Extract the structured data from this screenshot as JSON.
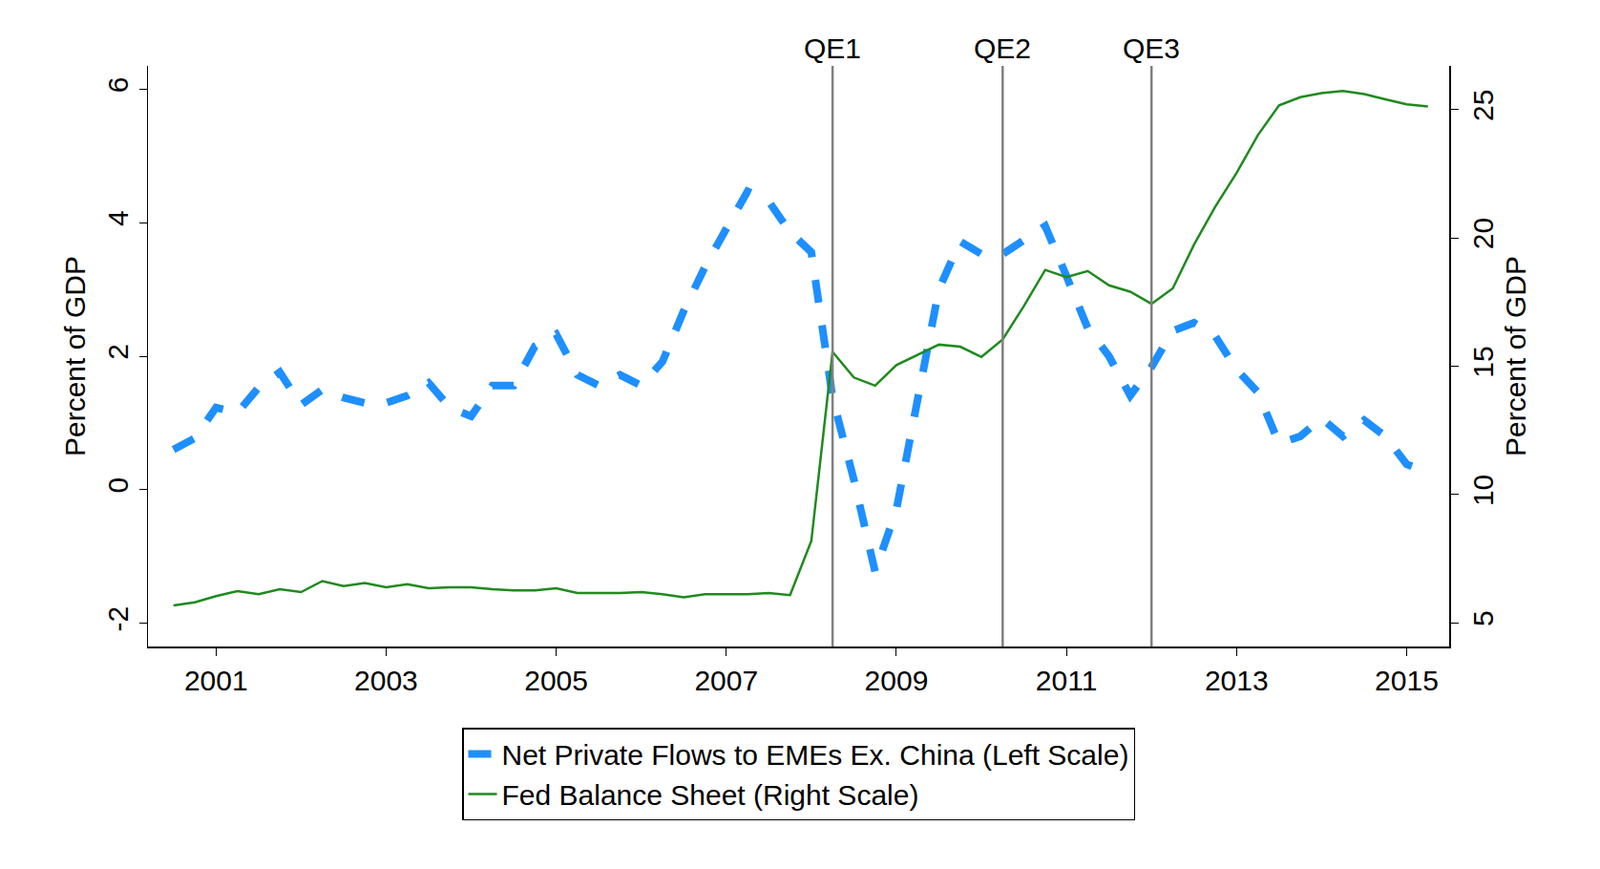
{
  "chart_data": {
    "type": "line",
    "y_label": "Percent of GDP",
    "y2_label": "Percent of GDP",
    "x": [
      2000.5,
      2000.75,
      2001,
      2001.25,
      2001.5,
      2001.75,
      2002,
      2002.25,
      2002.5,
      2002.75,
      2003,
      2003.25,
      2003.5,
      2003.75,
      2004,
      2004.25,
      2004.5,
      2004.75,
      2005,
      2005.25,
      2005.5,
      2005.75,
      2006,
      2006.25,
      2006.5,
      2006.75,
      2007,
      2007.25,
      2007.5,
      2007.75,
      2008,
      2008.25,
      2008.5,
      2008.75,
      2009,
      2009.25,
      2009.5,
      2009.75,
      2010,
      2010.25,
      2010.5,
      2010.75,
      2011,
      2011.25,
      2011.5,
      2011.75,
      2012,
      2012.25,
      2012.5,
      2012.75,
      2013,
      2013.25,
      2013.5,
      2013.75,
      2014,
      2014.25,
      2014.5,
      2014.75,
      2015,
      2015.25
    ],
    "series": [
      {
        "name": "Net Private Flows to EMEs Ex. China (Left Scale)",
        "color": "#1e8fff",
        "line_style": "dash",
        "axis": "y",
        "values": [
          0.6,
          0.77,
          1.23,
          1.15,
          1.53,
          1.76,
          1.27,
          1.5,
          1.38,
          1.3,
          1.3,
          1.41,
          1.6,
          1.23,
          1.1,
          1.56,
          1.56,
          2.15,
          2.33,
          1.72,
          1.56,
          1.72,
          1.56,
          1.92,
          2.68,
          3.34,
          3.91,
          4.47,
          4.32,
          3.86,
          3.56,
          1.38,
          0.15,
          -1.23,
          -0.3,
          1.4,
          3.0,
          3.72,
          3.53,
          3.53,
          3.75,
          3.95,
          3.2,
          2.42,
          2.0,
          1.41,
          1.84,
          2.38,
          2.5,
          2.3,
          1.8,
          1.46,
          0.69,
          0.8,
          1.07,
          0.8,
          1.04,
          0.8,
          0.38,
          0.26
        ]
      },
      {
        "name": "Fed Balance Sheet (Right Scale)",
        "color": "#1f8a1f",
        "line_style": "solid",
        "axis": "y2",
        "values": [
          5.68,
          5.8,
          6.04,
          6.24,
          6.12,
          6.31,
          6.2,
          6.63,
          6.43,
          6.55,
          6.39,
          6.51,
          6.35,
          6.39,
          6.39,
          6.31,
          6.27,
          6.27,
          6.35,
          6.16,
          6.16,
          6.16,
          6.2,
          6.12,
          6.0,
          6.12,
          6.12,
          6.12,
          6.16,
          6.08,
          8.19,
          15.56,
          14.56,
          14.24,
          15.04,
          15.44,
          15.84,
          15.76,
          15.36,
          16.04,
          17.35,
          18.75,
          18.47,
          18.71,
          18.15,
          17.9,
          17.43,
          18.03,
          19.74,
          21.22,
          22.53,
          24.0,
          25.16,
          25.48,
          25.64,
          25.72,
          25.6,
          25.4,
          25.2,
          25.12
        ]
      }
    ],
    "xlim": [
      2000.2,
      2015.5
    ],
    "xticks": [
      2001,
      2003,
      2005,
      2007,
      2009,
      2011,
      2013,
      2015
    ],
    "ylim": [
      -2.35,
      6.35
    ],
    "yticks": [
      -2,
      0,
      2,
      4,
      6
    ],
    "y2lim": [
      4.08,
      26.7
    ],
    "y2ticks": [
      5,
      10,
      15,
      20,
      25
    ],
    "annotations": [
      {
        "x": 2008.25,
        "text": "QE1"
      },
      {
        "x": 2010.25,
        "text": "QE2"
      },
      {
        "x": 2012.0,
        "text": "QE3"
      }
    ],
    "grid": false,
    "legend": "bottom"
  }
}
